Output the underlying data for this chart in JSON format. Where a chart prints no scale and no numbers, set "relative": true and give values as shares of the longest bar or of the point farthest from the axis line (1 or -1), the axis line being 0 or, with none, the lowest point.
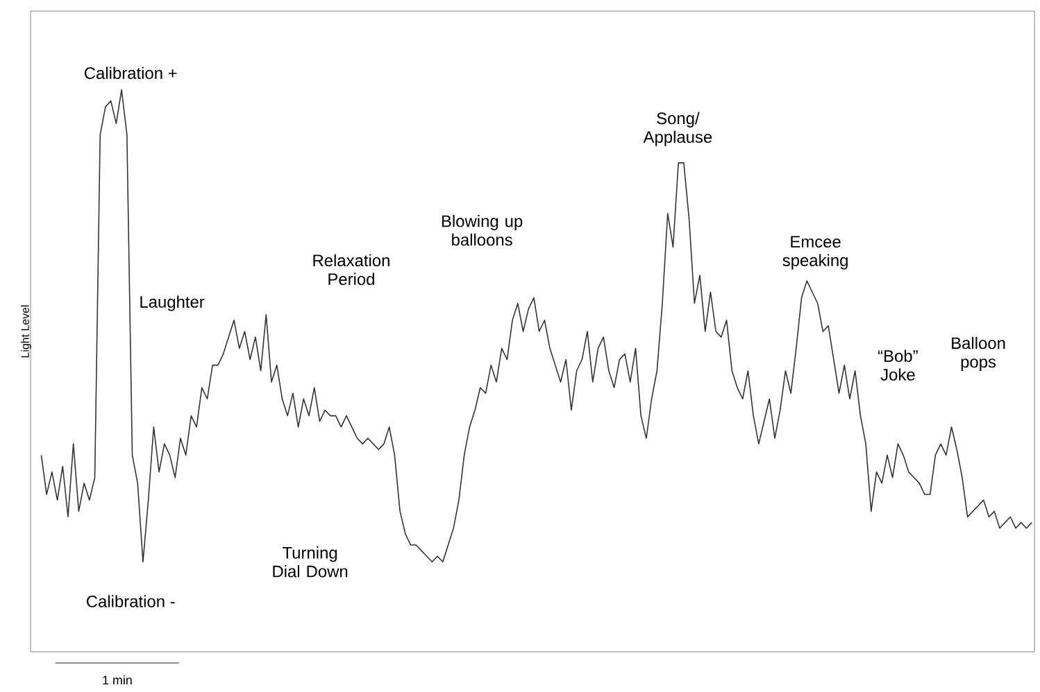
{
  "chart_data": {
    "type": "line",
    "ylabel": "Light Level",
    "relative": true,
    "categories": [
      null,
      null,
      null,
      null,
      null,
      null,
      null,
      null,
      null,
      null,
      null,
      null,
      null,
      null,
      null,
      null,
      null,
      null,
      null,
      null,
      null,
      null,
      null,
      null,
      null,
      null,
      null,
      null,
      null,
      null,
      null,
      null,
      null,
      null,
      null,
      null,
      null,
      null,
      null,
      null,
      null,
      null,
      null,
      null,
      null,
      null,
      null,
      null,
      null,
      null,
      null,
      null,
      null,
      null,
      null,
      null,
      null,
      null,
      null,
      null,
      null,
      null,
      null,
      null,
      null,
      null,
      null,
      null,
      null,
      null,
      null,
      null,
      null,
      null,
      null,
      null,
      null,
      null,
      null,
      null,
      null,
      null,
      null,
      null,
      null,
      null,
      null,
      null,
      null,
      null,
      null,
      null,
      null,
      null,
      null,
      null,
      null,
      null,
      null,
      null,
      null,
      null,
      null,
      null,
      null,
      null,
      null,
      null,
      null,
      null,
      null,
      null,
      null,
      null,
      null,
      null,
      null,
      null,
      null,
      null,
      null,
      null,
      null,
      null,
      null,
      null,
      null,
      null,
      null,
      null,
      null,
      null,
      null,
      null,
      null,
      null,
      null,
      null,
      null,
      null,
      null,
      null,
      null,
      null,
      null,
      null,
      null,
      null,
      null,
      null,
      null,
      null,
      null,
      null,
      null,
      null,
      null,
      null,
      null,
      null,
      null,
      null,
      null,
      null,
      null,
      null,
      null,
      null,
      null,
      null,
      null,
      null,
      null,
      null,
      null,
      null,
      null,
      null,
      null,
      null,
      null,
      null,
      null,
      null,
      null,
      null
    ],
    "series": [
      {
        "color": "#333333",
        "values": [
          0.35,
          0.28,
          0.32,
          0.27,
          0.33,
          0.24,
          0.37,
          0.25,
          0.3,
          0.27,
          0.31,
          0.92,
          0.97,
          0.98,
          0.94,
          1.0,
          0.92,
          0.35,
          0.3,
          0.16,
          0.27,
          0.4,
          0.32,
          0.37,
          0.35,
          0.31,
          0.38,
          0.35,
          0.42,
          0.4,
          0.47,
          0.45,
          0.51,
          0.51,
          0.53,
          0.56,
          0.59,
          0.54,
          0.57,
          0.52,
          0.56,
          0.5,
          0.6,
          0.48,
          0.51,
          0.45,
          0.42,
          0.46,
          0.4,
          0.45,
          0.42,
          0.47,
          0.41,
          0.43,
          0.42,
          0.42,
          0.4,
          0.42,
          0.4,
          0.38,
          0.37,
          0.38,
          0.37,
          0.36,
          0.37,
          0.4,
          0.35,
          0.25,
          0.21,
          0.19,
          0.19,
          0.18,
          0.17,
          0.16,
          0.17,
          0.16,
          0.19,
          0.22,
          0.27,
          0.35,
          0.4,
          0.43,
          0.47,
          0.46,
          0.51,
          0.48,
          0.54,
          0.52,
          0.59,
          0.62,
          0.57,
          0.61,
          0.63,
          0.57,
          0.59,
          0.54,
          0.51,
          0.48,
          0.52,
          0.43,
          0.5,
          0.52,
          0.57,
          0.48,
          0.54,
          0.56,
          0.5,
          0.47,
          0.52,
          0.53,
          0.48,
          0.54,
          0.42,
          0.38,
          0.45,
          0.5,
          0.62,
          0.78,
          0.72,
          0.87,
          0.87,
          0.77,
          0.62,
          0.67,
          0.57,
          0.64,
          0.57,
          0.56,
          0.59,
          0.5,
          0.47,
          0.45,
          0.5,
          0.42,
          0.37,
          0.41,
          0.45,
          0.38,
          0.43,
          0.5,
          0.46,
          0.54,
          0.63,
          0.66,
          0.64,
          0.62,
          0.57,
          0.58,
          0.52,
          0.46,
          0.51,
          0.45,
          0.5,
          0.42,
          0.37,
          0.25,
          0.32,
          0.3,
          0.35,
          0.31,
          0.37,
          0.35,
          0.32,
          0.31,
          0.3,
          0.28,
          0.28,
          0.35,
          0.37,
          0.35,
          0.4,
          0.36,
          0.31,
          0.24,
          0.25,
          0.26,
          0.27,
          0.24,
          0.25,
          0.22,
          0.23,
          0.24,
          0.22,
          0.23,
          0.22,
          0.23
        ]
      }
    ],
    "annotations": [
      "Calibration +",
      "Laughter",
      "Relaxation Period",
      "Blowing up balloons",
      "Song/ Applause",
      "Emcee speaking",
      "Turning Dial Down",
      "Calibration -",
      "“Bob” Joke",
      "Balloon pops",
      "1 min"
    ]
  }
}
